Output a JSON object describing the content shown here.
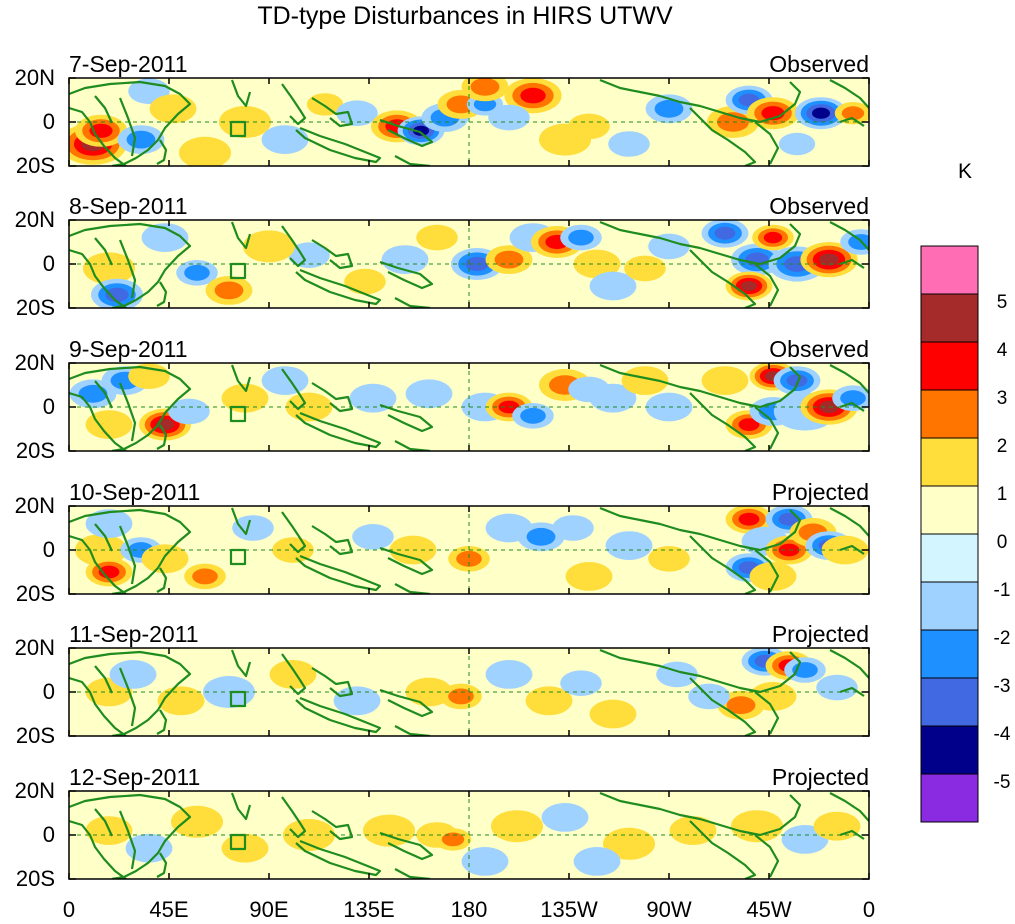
{
  "title": "TD-type Disturbances in HIRS UTWV",
  "panels": [
    {
      "date": "7-Sep-2011",
      "label": "Observed"
    },
    {
      "date": "8-Sep-2011",
      "label": "Observed"
    },
    {
      "date": "9-Sep-2011",
      "label": "Observed"
    },
    {
      "date": "10-Sep-2011",
      "label": "Projected"
    },
    {
      "date": "11-Sep-2011",
      "label": "Projected"
    },
    {
      "date": "12-Sep-2011",
      "label": "Projected"
    }
  ],
  "lat_labels": [
    "20N",
    "0",
    "20S"
  ],
  "lon_labels": [
    "0",
    "45E",
    "90E",
    "135E",
    "180",
    "135W",
    "90W",
    "45W",
    "0"
  ],
  "colorbar": {
    "unit": "K",
    "labels": [
      "5",
      "4",
      "3",
      "2",
      "1",
      "0",
      "-1",
      "-2",
      "-3",
      "-4",
      "-5"
    ],
    "colors": [
      "#ff6eb4",
      "#a52a2a",
      "#ff0000",
      "#ff7500",
      "#ffdd3a",
      "#ffffc8",
      "#d2f5ff",
      "#a0d2ff",
      "#1e90ff",
      "#4169e1",
      "#00008b",
      "#8a2be2"
    ]
  },
  "colors": {
    "land": "#1e8c1e",
    "axis": "#000000"
  }
}
